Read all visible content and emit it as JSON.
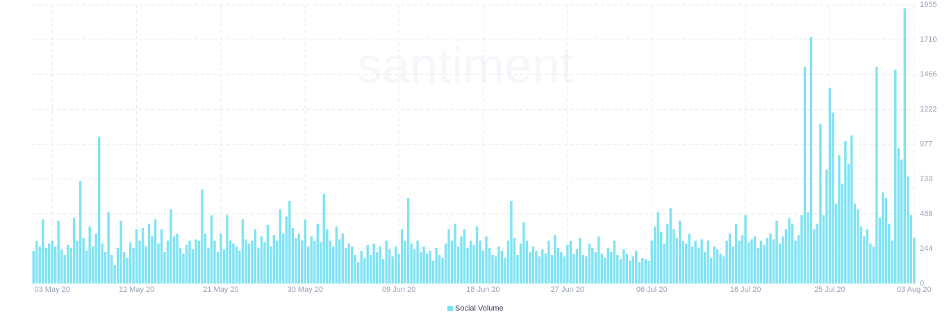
{
  "chart_data": {
    "type": "bar",
    "watermark": "santiment",
    "legend": "bottom",
    "color": "#7fe3f3",
    "series": [
      {
        "name": "Social Volume",
        "color": "#7fe3f3",
        "values": [
          230,
          300,
          260,
          450,
          250,
          280,
          300,
          260,
          440,
          240,
          200,
          270,
          250,
          460,
          300,
          720,
          320,
          230,
          400,
          260,
          350,
          1030,
          280,
          220,
          500,
          200,
          130,
          250,
          440,
          220,
          180,
          290,
          250,
          380,
          300,
          390,
          260,
          420,
          330,
          450,
          280,
          380,
          220,
          300,
          520,
          330,
          350,
          250,
          210,
          270,
          300,
          240,
          310,
          300,
          660,
          350,
          250,
          480,
          300,
          220,
          350,
          240,
          480,
          300,
          280,
          260,
          230,
          450,
          310,
          280,
          300,
          380,
          250,
          330,
          290,
          410,
          260,
          340,
          300,
          520,
          350,
          470,
          580,
          390,
          320,
          350,
          300,
          450,
          260,
          330,
          300,
          420,
          290,
          630,
          380,
          300,
          260,
          400,
          310,
          350,
          250,
          280,
          260,
          200,
          150,
          230,
          180,
          270,
          200,
          280,
          220,
          260,
          170,
          300,
          240,
          190,
          260,
          210,
          380,
          300,
          600,
          280,
          240,
          300,
          220,
          260,
          210,
          230,
          160,
          250,
          200,
          180,
          280,
          380,
          300,
          420,
          260,
          330,
          380,
          250,
          300,
          270,
          400,
          300,
          230,
          330,
          250,
          200,
          190,
          260,
          230,
          180,
          300,
          580,
          320,
          200,
          280,
          430,
          300,
          220,
          260,
          230,
          190,
          240,
          210,
          300,
          200,
          340,
          250,
          220,
          190,
          270,
          300,
          210,
          240,
          320,
          200,
          190,
          280,
          250,
          220,
          330,
          210,
          180,
          250,
          220,
          300,
          200,
          170,
          240,
          210,
          160,
          190,
          230,
          150,
          180,
          170,
          160,
          300,
          400,
          500,
          360,
          280,
          420,
          530,
          380,
          320,
          440,
          300,
          280,
          350,
          260,
          300,
          250,
          310,
          220,
          300,
          180,
          260,
          240,
          210,
          190,
          300,
          350,
          260,
          420,
          300,
          340,
          480,
          290,
          310,
          330,
          250,
          300,
          270,
          320,
          350,
          310,
          440,
          280,
          330,
          380,
          460,
          420,
          300,
          340,
          480,
          1520,
          500,
          1730,
          380,
          420,
          1120,
          480,
          800,
          1370,
          1200,
          560,
          900,
          700,
          1000,
          840,
          1040,
          560,
          520,
          400,
          330,
          380,
          280,
          260,
          1520,
          460,
          640,
          600,
          420,
          300,
          1500,
          950,
          870,
          1930,
          750,
          480,
          320
        ]
      }
    ],
    "xlim": [
      0,
      283
    ],
    "xticks": [
      {
        "value": 6,
        "label": "03 May 20"
      },
      {
        "value": 33,
        "label": "12 May 20"
      },
      {
        "value": 60,
        "label": "21 May 20"
      },
      {
        "value": 87,
        "label": "30 May 20"
      },
      {
        "value": 117,
        "label": "09 Jun 20"
      },
      {
        "value": 144,
        "label": "18 Jun 20"
      },
      {
        "value": 171,
        "label": "27 Jun 20"
      },
      {
        "value": 198,
        "label": "06 Jul 20"
      },
      {
        "value": 228,
        "label": "16 Jul 20"
      },
      {
        "value": 255,
        "label": "25 Jul 20"
      },
      {
        "value": 282,
        "label": "03 Aug 20"
      }
    ],
    "ylim": [
      0,
      1955
    ],
    "yticks": [
      0,
      244,
      488,
      733,
      977,
      1222,
      1466,
      1710,
      1955
    ],
    "grid": true
  }
}
